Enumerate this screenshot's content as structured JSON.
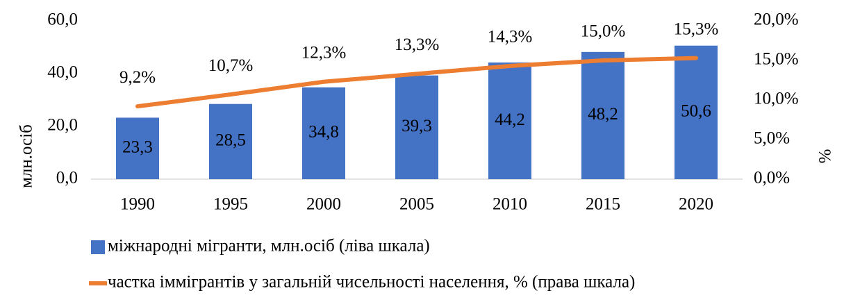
{
  "chart_data": {
    "type": "bar",
    "categories": [
      "1990",
      "1995",
      "2000",
      "2005",
      "2010",
      "2015",
      "2020"
    ],
    "series": [
      {
        "name": "міжнародні мігранти, млн.осіб (ліва шкала)",
        "type": "bar",
        "color": "#4472c4",
        "values": [
          23.3,
          28.5,
          34.8,
          39.3,
          44.2,
          48.2,
          50.6
        ],
        "value_labels": [
          "23,3",
          "28,5",
          "34,8",
          "39,3",
          "44,2",
          "48,2",
          "50,6"
        ]
      },
      {
        "name": "частка іммігрантів у загальній чисельності населення, % (права шкала)",
        "type": "line",
        "axis": "y2",
        "color": "#ed7d31",
        "values": [
          9.2,
          10.7,
          12.3,
          13.3,
          14.3,
          15.0,
          15.3
        ],
        "value_labels": [
          "9,2%",
          "10,7%",
          "12,3%",
          "13,3%",
          "14,3%",
          "15,0%",
          "15,3%"
        ]
      }
    ],
    "y_label": "млн.осіб",
    "y2_label": "%",
    "ylim": [
      0,
      60
    ],
    "yticks": [
      {
        "value": 0,
        "label": "0,0"
      },
      {
        "value": 20,
        "label": "20,0"
      },
      {
        "value": 40,
        "label": "40,0"
      },
      {
        "value": 60,
        "label": "60,0"
      }
    ],
    "y2lim": [
      0,
      20
    ],
    "y2ticks": [
      {
        "value": 0,
        "label": "0,0%"
      },
      {
        "value": 5,
        "label": "5,0%"
      },
      {
        "value": 10,
        "label": "10,0%"
      },
      {
        "value": 15,
        "label": "15,0%"
      },
      {
        "value": 20,
        "label": "20,0%"
      }
    ],
    "grid": false,
    "legend": "bottom"
  }
}
